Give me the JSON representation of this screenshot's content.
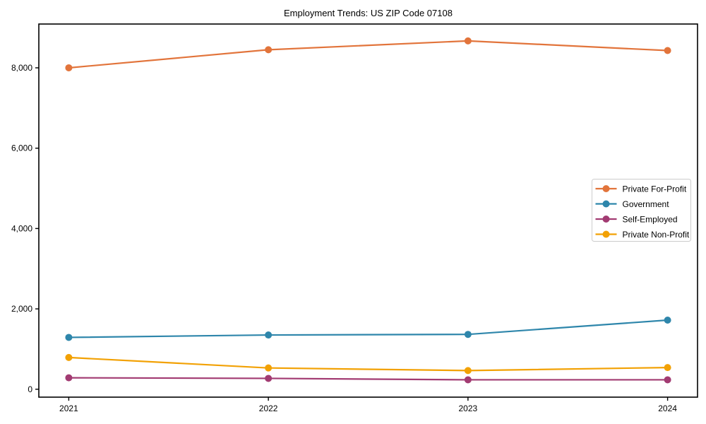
{
  "chart_data": {
    "type": "line",
    "title": "Employment Trends: US ZIP Code 07108",
    "x_categories": [
      "2021",
      "2022",
      "2023",
      "2024"
    ],
    "series": [
      {
        "name": "Private For-Profit",
        "color": "#E2743B",
        "values": [
          8000,
          8450,
          8670,
          8430
        ]
      },
      {
        "name": "Government",
        "color": "#2E86AB",
        "values": [
          1290,
          1350,
          1365,
          1720
        ]
      },
      {
        "name": "Self-Employed",
        "color": "#A23B72",
        "values": [
          285,
          270,
          235,
          235
        ]
      },
      {
        "name": "Private Non-Profit",
        "color": "#F2A104",
        "values": [
          790,
          530,
          465,
          540
        ]
      }
    ],
    "ylim": [
      -197,
      9090
    ],
    "yticks": [
      0,
      2000,
      4000,
      6000,
      8000
    ],
    "ytick_labels": [
      "0",
      "2,000",
      "4,000",
      "6,000",
      "8,000"
    ],
    "xlabel": "",
    "ylabel": "",
    "grid": false,
    "marker": "circle",
    "legend": {
      "position": "center-right",
      "entries": [
        "Private For-Profit",
        "Government",
        "Self-Employed",
        "Private Non-Profit"
      ]
    }
  },
  "style": {
    "background": "#ffffff",
    "frame_color": "#000000",
    "tick_color": "#000000",
    "legend_border_color": "#cccccc",
    "legend_background": "#ffffff"
  }
}
